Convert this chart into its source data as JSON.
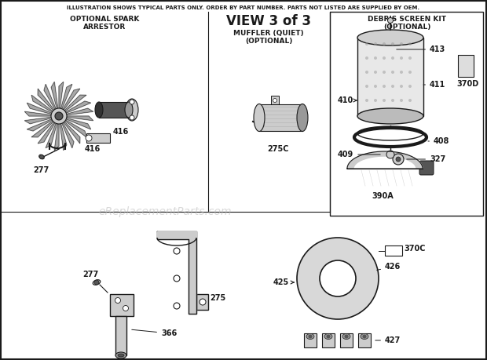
{
  "title_top": "ILLUSTRATION SHOWS TYPICAL PARTS ONLY. ORDER BY PART NUMBER. PARTS NOT LISTED ARE SUPPLIED BY OEM.",
  "view_title": "VIEW 3 of 3",
  "bg_color": "#ffffff",
  "border_color": "#1a1a1a",
  "text_color": "#1a1a1a",
  "watermark": "eReplacementParts.com",
  "gray_light": "#cccccc",
  "gray_mid": "#999999",
  "gray_dark": "#555555",
  "gray_fill": "#bbbbbb",
  "white": "#ffffff"
}
